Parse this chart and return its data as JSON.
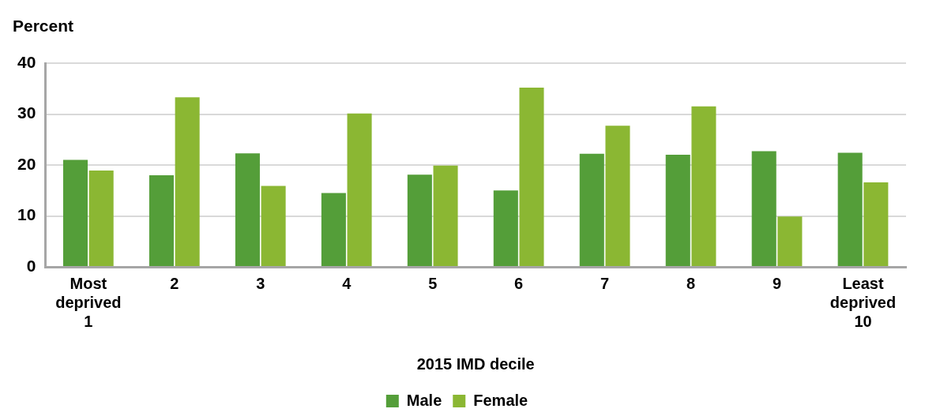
{
  "chart_data": {
    "type": "bar",
    "ylabel": "Percent",
    "xlabel": "2015 IMD decile",
    "categories": [
      "Most deprived 1",
      "2",
      "3",
      "4",
      "5",
      "6",
      "7",
      "8",
      "9",
      "Least deprived 10"
    ],
    "series": [
      {
        "name": "Male",
        "color": "#549e39",
        "values": [
          21.0,
          18.0,
          22.3,
          14.5,
          18.1,
          15.0,
          22.2,
          22.0,
          22.7,
          22.4
        ]
      },
      {
        "name": "Female",
        "color": "#8bb733",
        "values": [
          18.9,
          33.3,
          15.9,
          30.1,
          19.9,
          35.2,
          27.7,
          31.5,
          9.9,
          16.6
        ]
      }
    ],
    "ylim": [
      0,
      40
    ],
    "yticks": [
      0,
      10,
      20,
      30,
      40
    ],
    "grid": "y",
    "legend": "bottom"
  }
}
